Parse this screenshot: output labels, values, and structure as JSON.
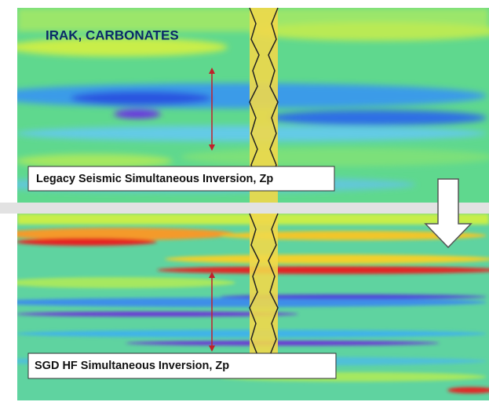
{
  "header": {
    "title": "IRAK, CARBONATES"
  },
  "panels": [
    {
      "label": "Legacy Seismic Simultaneous Inversion, Zp"
    },
    {
      "label": "SGD HF Simultaneous Inversion, Zp"
    }
  ]
}
